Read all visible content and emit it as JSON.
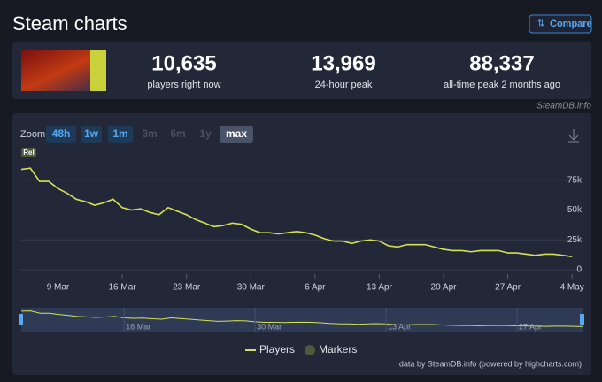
{
  "header": {
    "title": "Steam charts",
    "compare": "Compare"
  },
  "stats": [
    {
      "value": "10,635",
      "label": "players right now"
    },
    {
      "value": "13,969",
      "label": "24-hour peak"
    },
    {
      "value": "88,337",
      "label": "all-time peak 2 months ago"
    }
  ],
  "watermark": "SteamDB.info",
  "zoom": {
    "label": "Zoom",
    "buttons": [
      "48h",
      "1w",
      "1m",
      "3m",
      "6m",
      "1y",
      "max"
    ]
  },
  "credits": "data by SteamDB.info (powered by highcharts.com)",
  "chart_data": {
    "type": "line",
    "x": [
      "5 Mar",
      "6 Mar",
      "7 Mar",
      "8 Mar",
      "9 Mar",
      "10 Mar",
      "11 Mar",
      "12 Mar",
      "13 Mar",
      "14 Mar",
      "15 Mar",
      "16 Mar",
      "17 Mar",
      "18 Mar",
      "19 Mar",
      "20 Mar",
      "21 Mar",
      "22 Mar",
      "23 Mar",
      "24 Mar",
      "25 Mar",
      "26 Mar",
      "27 Mar",
      "28 Mar",
      "29 Mar",
      "30 Mar",
      "31 Mar",
      "1 Apr",
      "2 Apr",
      "3 Apr",
      "4 Apr",
      "5 Apr",
      "6 Apr",
      "7 Apr",
      "8 Apr",
      "9 Apr",
      "10 Apr",
      "11 Apr",
      "12 Apr",
      "13 Apr",
      "14 Apr",
      "15 Apr",
      "16 Apr",
      "17 Apr",
      "18 Apr",
      "19 Apr",
      "20 Apr",
      "21 Apr",
      "22 Apr",
      "23 Apr",
      "24 Apr",
      "25 Apr",
      "26 Apr",
      "27 Apr",
      "28 Apr",
      "29 Apr",
      "30 Apr",
      "1 May",
      "2 May",
      "3 May",
      "4 May"
    ],
    "series": [
      {
        "name": "Players",
        "color": "#d4e157",
        "values": [
          84000,
          85000,
          74000,
          74000,
          68000,
          64000,
          59000,
          57000,
          54000,
          56000,
          59000,
          52000,
          50000,
          51000,
          48000,
          46000,
          52000,
          49000,
          46000,
          42000,
          39000,
          36000,
          37000,
          39000,
          38000,
          34000,
          31000,
          31000,
          30000,
          31000,
          32000,
          31000,
          29000,
          26000,
          24000,
          24000,
          22000,
          24000,
          25000,
          24000,
          20000,
          19000,
          21000,
          21000,
          21000,
          19000,
          17000,
          16000,
          16000,
          15000,
          16000,
          16000,
          16000,
          14000,
          14000,
          13000,
          12000,
          13000,
          13000,
          12000,
          11000
        ]
      }
    ],
    "markers": {
      "name": "Markers",
      "color": "#4b5a3c"
    },
    "annotations": [
      {
        "x": "5 Mar",
        "label": "Rel"
      }
    ],
    "xticks": [
      "9 Mar",
      "16 Mar",
      "23 Mar",
      "30 Mar",
      "6 Apr",
      "13 Apr",
      "20 Apr",
      "27 Apr",
      "4 May"
    ],
    "ylim": [
      0,
      100000
    ],
    "yticks": [
      0,
      {
        "value": 25000,
        "label": "25k"
      },
      {
        "value": 50000,
        "label": "50k"
      },
      {
        "value": 75000,
        "label": "75k"
      }
    ],
    "grid": true
  }
}
